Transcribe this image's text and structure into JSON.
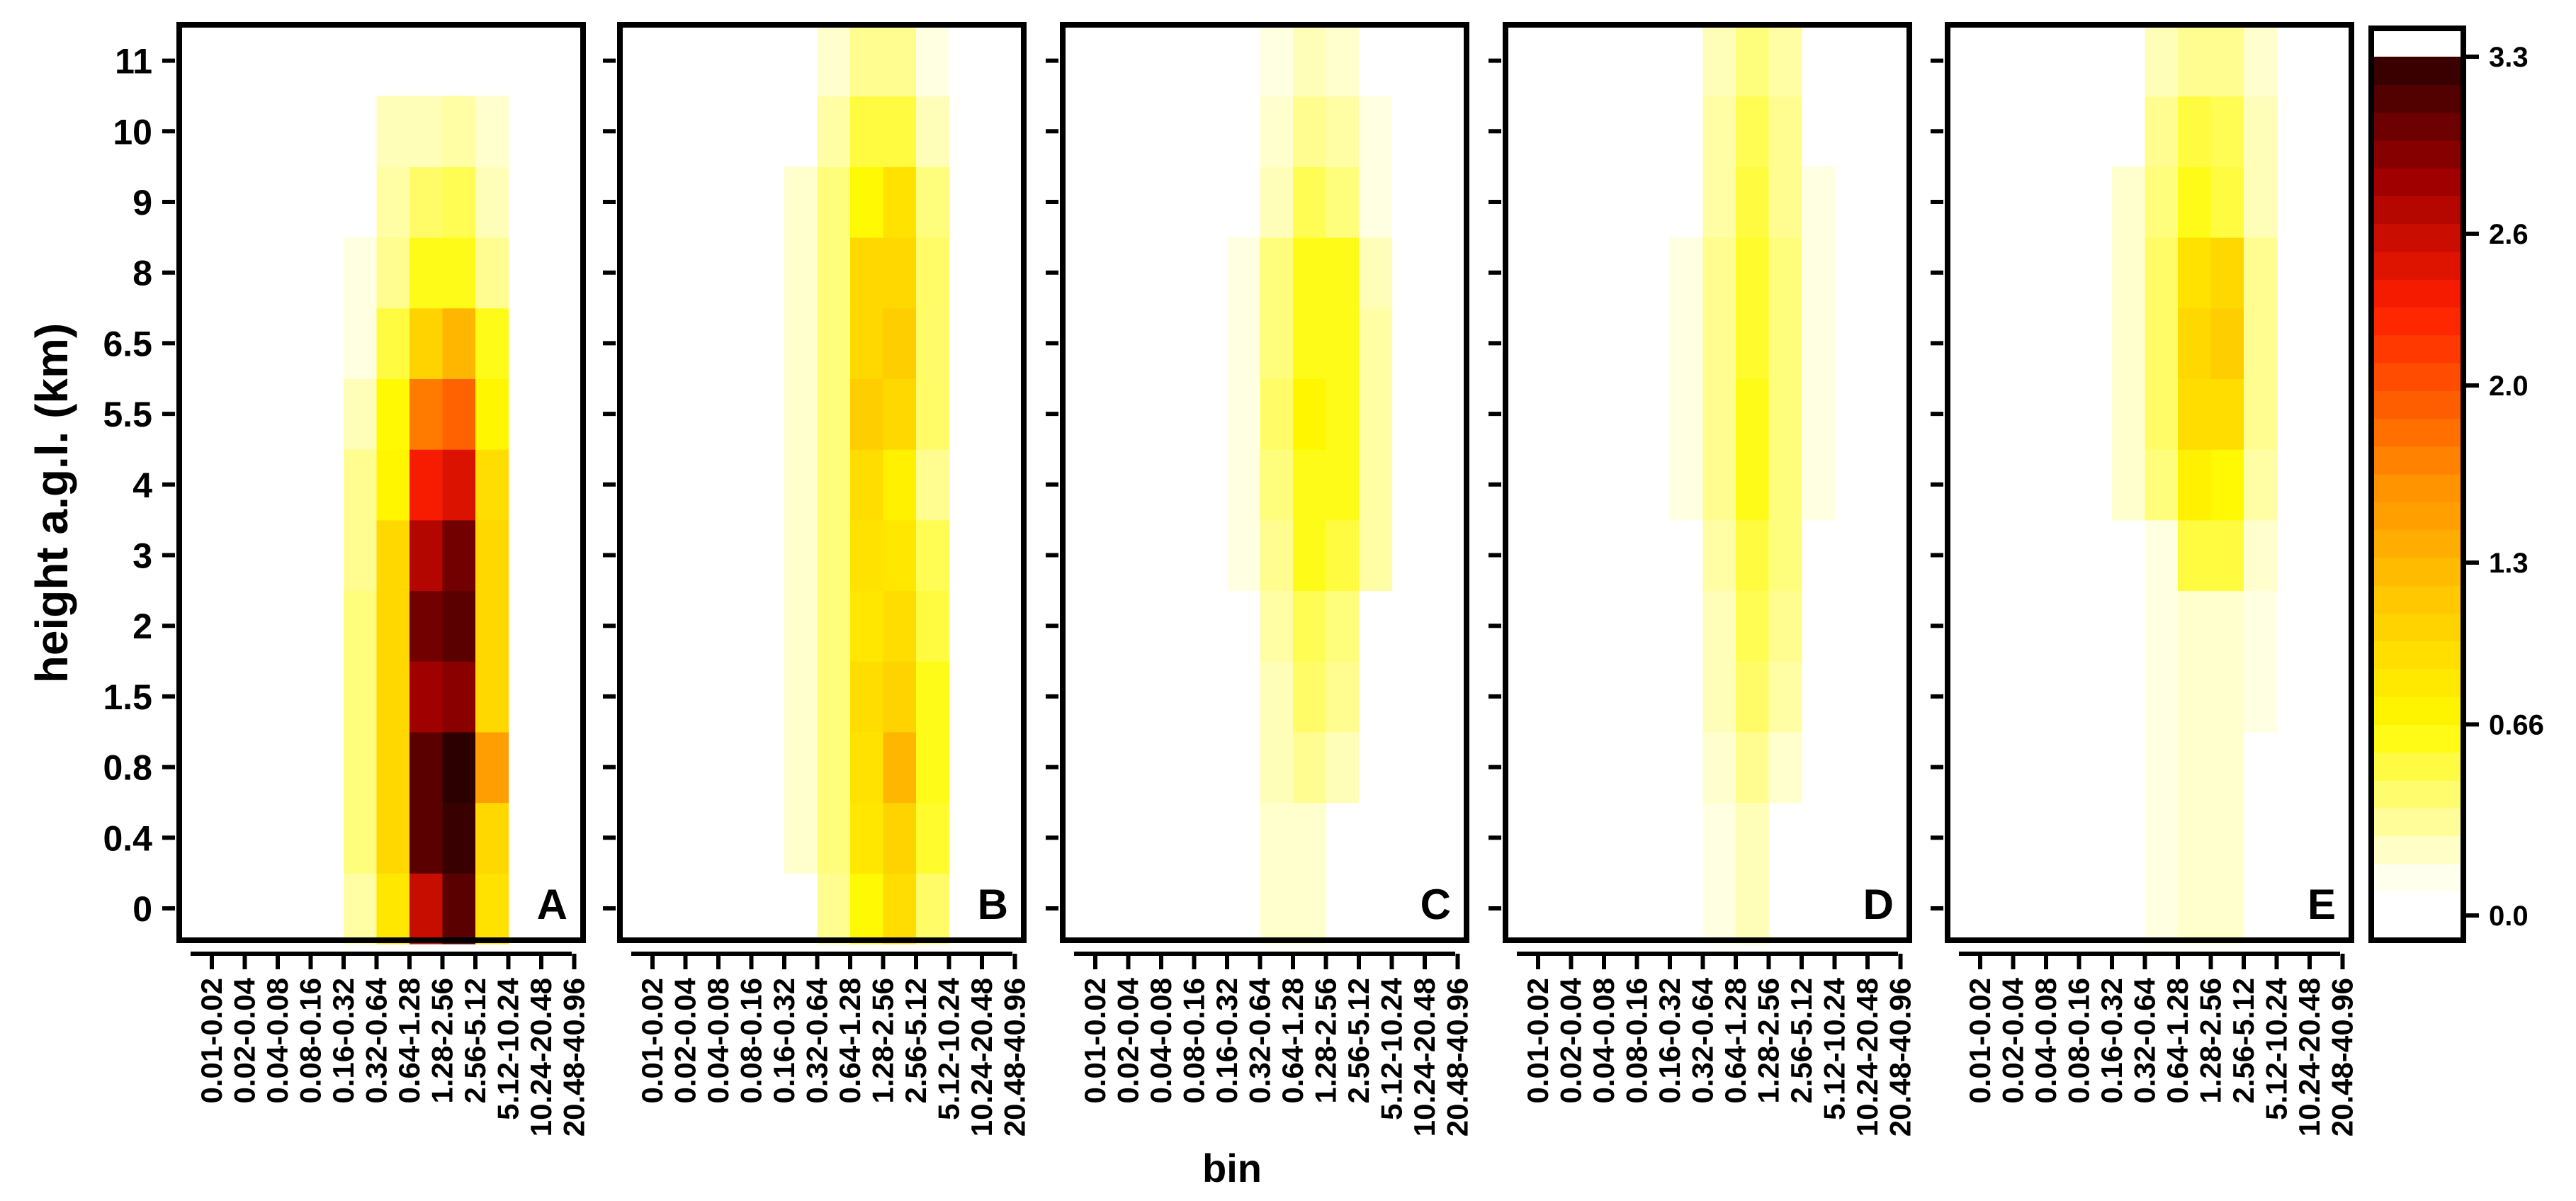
{
  "chart_data": {
    "type": "heatmap",
    "xlabel": "bin",
    "ylabel": "height a.g.l. (km)",
    "x_categories": [
      "0.01-0.02",
      "0.02-0.04",
      "0.04-0.08",
      "0.08-0.16",
      "0.16-0.32",
      "0.32-0.64",
      "0.64-1.28",
      "1.28-2.56",
      "2.56-5.12",
      "5.12-10.24",
      "10.24-20.48",
      "20.48-40.96"
    ],
    "y_categories": [
      "0",
      "0.4",
      "0.8",
      "1.5",
      "2",
      "3",
      "4",
      "5.5",
      "6.5",
      "8",
      "9",
      "10",
      "11"
    ],
    "colorbar": {
      "min": 0.0,
      "max": 3.3,
      "tick_labels": [
        "0.0",
        "0.66",
        "1.3",
        "2.0",
        "2.6",
        "3.3"
      ],
      "tick_values": [
        0.0,
        0.66,
        1.3,
        2.0,
        2.6,
        3.3
      ],
      "colormap": "heat (white-yellow-orange-red-black)"
    },
    "panels": [
      {
        "label": "A",
        "values": [
          [
            0,
            0,
            0,
            0,
            0.25,
            0.85,
            2.6,
            3.1,
            0.9,
            0,
            0,
            0
          ],
          [
            0,
            0,
            0,
            0,
            0.35,
            1.0,
            3.1,
            3.25,
            1.0,
            0,
            0,
            0
          ],
          [
            0,
            0,
            0,
            0,
            0.35,
            1.0,
            3.1,
            3.3,
            1.5,
            0,
            0,
            0
          ],
          [
            0,
            0,
            0,
            0,
            0.35,
            1.0,
            2.8,
            2.9,
            1.0,
            0,
            0,
            0
          ],
          [
            0,
            0,
            0,
            0,
            0.35,
            1.0,
            3.0,
            3.1,
            1.0,
            0,
            0,
            0
          ],
          [
            0,
            0,
            0,
            0,
            0.3,
            1.0,
            2.7,
            3.0,
            1.0,
            0,
            0,
            0
          ],
          [
            0,
            0,
            0,
            0,
            0.3,
            0.7,
            2.35,
            2.5,
            0.95,
            0,
            0,
            0
          ],
          [
            0,
            0,
            0,
            0,
            0.2,
            0.65,
            1.75,
            1.9,
            0.7,
            0,
            0,
            0
          ],
          [
            0,
            0,
            0,
            0,
            0.1,
            0.5,
            1.05,
            1.3,
            0.6,
            0,
            0,
            0
          ],
          [
            0,
            0,
            0,
            0,
            0.1,
            0.3,
            0.6,
            0.6,
            0.3,
            0,
            0,
            0
          ],
          [
            0,
            0,
            0,
            0,
            0,
            0.25,
            0.4,
            0.45,
            0.2,
            0,
            0,
            0
          ],
          [
            0,
            0,
            0,
            0,
            0,
            0.2,
            0.2,
            0.25,
            0.15,
            0,
            0,
            0
          ],
          [
            0,
            0,
            0,
            0,
            0,
            0,
            0,
            0,
            0,
            0,
            0,
            0
          ]
        ]
      },
      {
        "label": "B",
        "values": [
          [
            0,
            0,
            0,
            0,
            0,
            0.3,
            0.65,
            0.95,
            0.4,
            0,
            0,
            0
          ],
          [
            0,
            0,
            0,
            0,
            0.15,
            0.35,
            0.85,
            1.05,
            0.55,
            0,
            0,
            0
          ],
          [
            0,
            0,
            0,
            0,
            0.15,
            0.35,
            0.9,
            1.3,
            0.6,
            0,
            0,
            0
          ],
          [
            0,
            0,
            0,
            0,
            0.15,
            0.35,
            0.95,
            1.05,
            0.6,
            0,
            0,
            0
          ],
          [
            0,
            0,
            0,
            0,
            0.15,
            0.35,
            0.85,
            0.95,
            0.5,
            0,
            0,
            0
          ],
          [
            0,
            0,
            0,
            0,
            0.15,
            0.35,
            0.9,
            0.85,
            0.45,
            0,
            0,
            0
          ],
          [
            0,
            0,
            0,
            0,
            0.15,
            0.35,
            0.95,
            0.75,
            0.3,
            0,
            0,
            0
          ],
          [
            0,
            0,
            0,
            0,
            0.15,
            0.35,
            1.1,
            1.0,
            0.4,
            0,
            0,
            0
          ],
          [
            0,
            0,
            0,
            0,
            0.15,
            0.35,
            1.0,
            1.1,
            0.4,
            0,
            0,
            0
          ],
          [
            0,
            0,
            0,
            0,
            0.15,
            0.35,
            1.0,
            1.0,
            0.4,
            0,
            0,
            0
          ],
          [
            0,
            0,
            0,
            0,
            0.15,
            0.35,
            0.65,
            0.9,
            0.35,
            0,
            0,
            0
          ],
          [
            0,
            0,
            0,
            0,
            0,
            0.25,
            0.5,
            0.5,
            0.2,
            0,
            0,
            0
          ],
          [
            0,
            0,
            0,
            0,
            0,
            0.15,
            0.3,
            0.3,
            0.1,
            0,
            0,
            0
          ]
        ]
      },
      {
        "label": "C",
        "values": [
          [
            0,
            0,
            0,
            0,
            0,
            0.15,
            0.15,
            0,
            0,
            0,
            0,
            0
          ],
          [
            0,
            0,
            0,
            0,
            0,
            0.15,
            0.15,
            0,
            0,
            0,
            0,
            0
          ],
          [
            0,
            0,
            0,
            0,
            0,
            0.2,
            0.3,
            0.2,
            0,
            0,
            0,
            0
          ],
          [
            0,
            0,
            0,
            0,
            0,
            0.2,
            0.4,
            0.3,
            0,
            0,
            0,
            0
          ],
          [
            0,
            0,
            0,
            0,
            0,
            0.25,
            0.45,
            0.35,
            0,
            0,
            0,
            0
          ],
          [
            0,
            0,
            0,
            0,
            0.1,
            0.3,
            0.6,
            0.5,
            0.25,
            0,
            0,
            0
          ],
          [
            0,
            0,
            0,
            0,
            0.1,
            0.35,
            0.6,
            0.6,
            0.25,
            0,
            0,
            0
          ],
          [
            0,
            0,
            0,
            0,
            0.1,
            0.4,
            0.7,
            0.6,
            0.25,
            0,
            0,
            0
          ],
          [
            0,
            0,
            0,
            0,
            0.1,
            0.35,
            0.6,
            0.6,
            0.25,
            0,
            0,
            0
          ],
          [
            0,
            0,
            0,
            0,
            0.1,
            0.35,
            0.6,
            0.6,
            0.2,
            0,
            0,
            0
          ],
          [
            0,
            0,
            0,
            0,
            0,
            0.2,
            0.45,
            0.35,
            0.1,
            0,
            0,
            0
          ],
          [
            0,
            0,
            0,
            0,
            0,
            0.15,
            0.3,
            0.25,
            0.1,
            0,
            0,
            0
          ],
          [
            0,
            0,
            0,
            0,
            0,
            0.1,
            0.2,
            0.15,
            0,
            0,
            0,
            0
          ]
        ]
      },
      {
        "label": "D",
        "values": [
          [
            0,
            0,
            0,
            0,
            0,
            0.1,
            0.2,
            0,
            0,
            0,
            0,
            0
          ],
          [
            0,
            0,
            0,
            0,
            0,
            0.1,
            0.2,
            0,
            0,
            0,
            0,
            0
          ],
          [
            0,
            0,
            0,
            0,
            0,
            0.15,
            0.3,
            0.15,
            0,
            0,
            0,
            0
          ],
          [
            0,
            0,
            0,
            0,
            0,
            0.2,
            0.4,
            0.25,
            0,
            0,
            0,
            0
          ],
          [
            0,
            0,
            0,
            0,
            0,
            0.2,
            0.45,
            0.3,
            0,
            0,
            0,
            0
          ],
          [
            0,
            0,
            0,
            0,
            0,
            0.25,
            0.5,
            0.35,
            0,
            0,
            0,
            0
          ],
          [
            0,
            0,
            0,
            0,
            0.1,
            0.3,
            0.6,
            0.35,
            0.1,
            0,
            0,
            0
          ],
          [
            0,
            0,
            0,
            0,
            0.1,
            0.3,
            0.6,
            0.35,
            0.1,
            0,
            0,
            0
          ],
          [
            0,
            0,
            0,
            0,
            0.1,
            0.3,
            0.55,
            0.35,
            0.1,
            0,
            0,
            0
          ],
          [
            0,
            0,
            0,
            0,
            0.1,
            0.3,
            0.55,
            0.35,
            0.1,
            0,
            0,
            0
          ],
          [
            0,
            0,
            0,
            0,
            0,
            0.25,
            0.5,
            0.3,
            0.1,
            0,
            0,
            0
          ],
          [
            0,
            0,
            0,
            0,
            0,
            0.25,
            0.45,
            0.3,
            0,
            0,
            0,
            0
          ],
          [
            0,
            0,
            0,
            0,
            0,
            0.2,
            0.35,
            0.25,
            0,
            0,
            0,
            0
          ]
        ]
      },
      {
        "label": "E",
        "values": [
          [
            0,
            0,
            0,
            0,
            0,
            0.1,
            0.15,
            0.15,
            0,
            0,
            0,
            0
          ],
          [
            0,
            0,
            0,
            0,
            0,
            0.1,
            0.15,
            0.15,
            0,
            0,
            0,
            0
          ],
          [
            0,
            0,
            0,
            0,
            0,
            0.1,
            0.15,
            0.15,
            0,
            0,
            0,
            0
          ],
          [
            0,
            0,
            0,
            0,
            0,
            0.1,
            0.15,
            0.15,
            0.1,
            0,
            0,
            0
          ],
          [
            0,
            0,
            0,
            0,
            0,
            0.1,
            0.15,
            0.15,
            0.1,
            0,
            0,
            0
          ],
          [
            0,
            0,
            0,
            0,
            0,
            0.1,
            0.5,
            0.5,
            0.15,
            0,
            0,
            0
          ],
          [
            0,
            0,
            0,
            0,
            0.15,
            0.35,
            0.75,
            0.65,
            0.25,
            0,
            0,
            0
          ],
          [
            0,
            0,
            0,
            0,
            0.15,
            0.4,
            0.95,
            0.95,
            0.3,
            0,
            0,
            0
          ],
          [
            0,
            0,
            0,
            0,
            0.15,
            0.4,
            1.0,
            1.1,
            0.3,
            0,
            0,
            0
          ],
          [
            0,
            0,
            0,
            0,
            0.15,
            0.4,
            0.9,
            1.0,
            0.3,
            0,
            0,
            0
          ],
          [
            0,
            0,
            0,
            0,
            0.15,
            0.35,
            0.6,
            0.5,
            0.2,
            0,
            0,
            0
          ],
          [
            0,
            0,
            0,
            0,
            0,
            0.3,
            0.5,
            0.45,
            0.2,
            0,
            0,
            0
          ],
          [
            0,
            0,
            0,
            0,
            0,
            0.2,
            0.3,
            0.3,
            0.15,
            0,
            0,
            0
          ]
        ]
      }
    ]
  }
}
